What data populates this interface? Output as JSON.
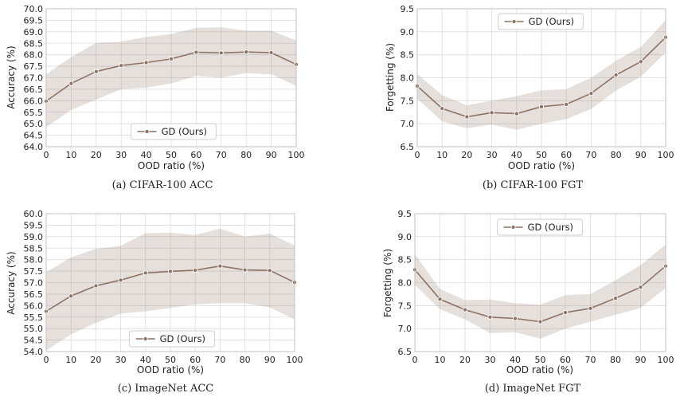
{
  "chart_data": [
    {
      "type": "line",
      "caption": "(a) CIFAR-100 ACC",
      "xlabel": "OOD ratio (%)",
      "ylabel": "Accuracy (%)",
      "x": [
        0,
        10,
        20,
        30,
        40,
        50,
        60,
        70,
        80,
        90,
        100
      ],
      "xlim": [
        0,
        100
      ],
      "ylim": [
        64.0,
        70.0
      ],
      "yticks": [
        64.0,
        64.5,
        65.0,
        65.5,
        66.0,
        66.5,
        67.0,
        67.5,
        68.0,
        68.5,
        69.0,
        69.5,
        70.0
      ],
      "ytick_decimals": 1,
      "grid": true,
      "legend_position": "bottom-center",
      "series": [
        {
          "name": "GD (Ours)",
          "color": "#8c7364",
          "values": [
            65.98,
            66.75,
            67.27,
            67.53,
            67.66,
            67.82,
            68.11,
            68.08,
            68.12,
            68.09,
            67.58
          ],
          "band_lower": [
            64.85,
            65.6,
            66.05,
            66.5,
            66.57,
            66.75,
            67.08,
            67.0,
            67.2,
            67.15,
            66.65
          ],
          "band_upper": [
            67.15,
            67.9,
            68.52,
            68.57,
            68.78,
            68.9,
            69.17,
            69.2,
            69.05,
            69.05,
            68.62
          ]
        }
      ]
    },
    {
      "type": "line",
      "caption": "(b) CIFAR-100 FGT",
      "xlabel": "OOD ratio (%)",
      "ylabel": "Forgetting (%)",
      "x": [
        0,
        10,
        20,
        30,
        40,
        50,
        60,
        70,
        80,
        90,
        100
      ],
      "xlim": [
        0,
        100
      ],
      "ylim": [
        6.5,
        9.5
      ],
      "yticks": [
        6.5,
        7.0,
        7.5,
        8.0,
        8.5,
        9.0,
        9.5
      ],
      "ytick_decimals": 1,
      "grid": true,
      "legend_position": "top-center",
      "series": [
        {
          "name": "GD (Ours)",
          "color": "#8c7364",
          "values": [
            7.82,
            7.33,
            7.15,
            7.24,
            7.22,
            7.37,
            7.42,
            7.66,
            8.06,
            8.35,
            8.88
          ],
          "band_lower": [
            7.55,
            7.05,
            6.9,
            6.98,
            6.87,
            7.0,
            7.1,
            7.32,
            7.72,
            8.02,
            8.55
          ],
          "band_upper": [
            8.08,
            7.62,
            7.4,
            7.5,
            7.6,
            7.73,
            7.75,
            8.0,
            8.37,
            8.67,
            9.25
          ]
        }
      ]
    },
    {
      "type": "line",
      "caption": "(c) ImageNet ACC",
      "xlabel": "OOD ratio (%)",
      "ylabel": "Accuracy (%)",
      "x": [
        0,
        10,
        20,
        30,
        40,
        50,
        60,
        70,
        80,
        90,
        100
      ],
      "xlim": [
        0,
        100
      ],
      "ylim": [
        54.0,
        60.0
      ],
      "yticks": [
        54.0,
        54.5,
        55.0,
        55.5,
        56.0,
        56.5,
        57.0,
        57.5,
        58.0,
        58.5,
        59.0,
        59.5,
        60.0
      ],
      "ytick_decimals": 1,
      "grid": true,
      "legend_position": "bottom-center",
      "series": [
        {
          "name": "GD (Ours)",
          "color": "#8c7364",
          "values": [
            55.75,
            56.42,
            56.86,
            57.11,
            57.42,
            57.49,
            57.54,
            57.72,
            57.55,
            57.53,
            57.01
          ],
          "band_lower": [
            54.05,
            54.75,
            55.25,
            55.65,
            55.75,
            55.9,
            56.05,
            56.1,
            56.1,
            55.92,
            55.4
          ],
          "band_upper": [
            57.45,
            58.1,
            58.47,
            58.6,
            59.15,
            59.17,
            59.07,
            59.35,
            59.0,
            59.13,
            58.62
          ]
        }
      ]
    },
    {
      "type": "line",
      "caption": "(d) ImageNet FGT",
      "xlabel": "OOD ratio (%)",
      "ylabel": "Forgetting (%)",
      "x": [
        0,
        10,
        20,
        30,
        40,
        50,
        60,
        70,
        80,
        90,
        100
      ],
      "xlim": [
        0,
        100
      ],
      "ylim": [
        6.5,
        9.5
      ],
      "yticks": [
        6.5,
        7.0,
        7.5,
        8.0,
        8.5,
        9.0,
        9.5
      ],
      "ytick_decimals": 1,
      "grid": true,
      "legend_position": "top-center",
      "series": [
        {
          "name": "GD (Ours)",
          "color": "#8c7364",
          "values": [
            8.28,
            7.64,
            7.41,
            7.25,
            7.22,
            7.15,
            7.35,
            7.44,
            7.66,
            7.9,
            8.36
          ],
          "band_lower": [
            7.95,
            7.42,
            7.2,
            6.9,
            6.92,
            6.78,
            7.0,
            7.15,
            7.3,
            7.45,
            7.88
          ],
          "band_upper": [
            8.62,
            7.86,
            7.62,
            7.63,
            7.55,
            7.52,
            7.73,
            7.75,
            8.05,
            8.38,
            8.83
          ]
        }
      ]
    }
  ]
}
